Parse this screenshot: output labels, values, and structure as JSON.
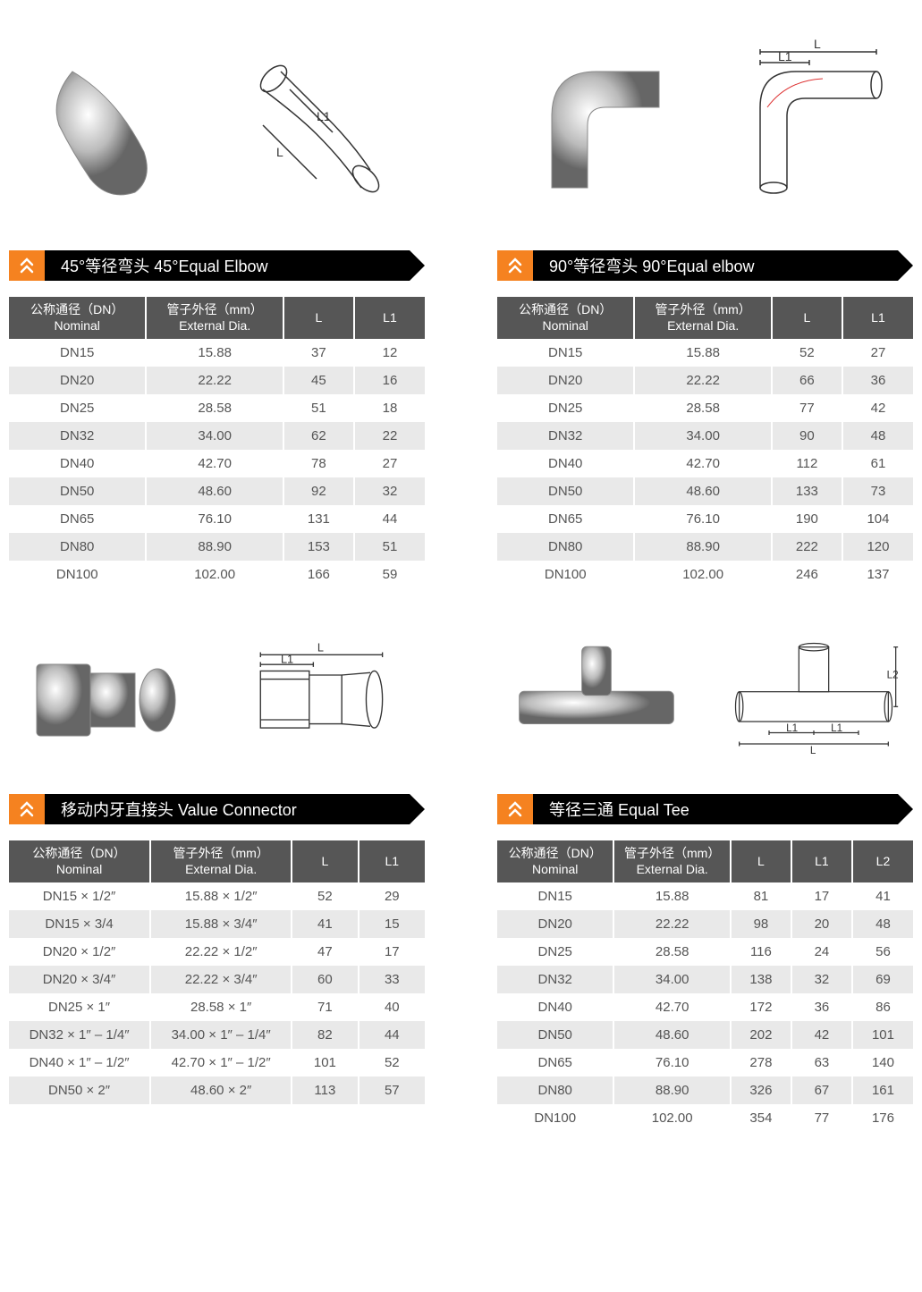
{
  "colors": {
    "chevron_bg": "#f58220",
    "title_bg": "#000000",
    "header_bg": "#565656",
    "row_even": "#ffffff",
    "row_odd": "#e9e9e9",
    "text": "#555555"
  },
  "sections": [
    {
      "id": "elbow45",
      "title": "45°等径弯头  45°Equal Elbow",
      "diagram_labels": [
        "L",
        "L1"
      ],
      "columns": [
        {
          "h1": "公称通径（DN）",
          "h2": "Nominal",
          "w": "33%"
        },
        {
          "h1": "管子外径（mm）",
          "h2": "External Dia.",
          "w": "33%"
        },
        {
          "h1": "L",
          "h2": "",
          "w": "17%"
        },
        {
          "h1": "L1",
          "h2": "",
          "w": "17%"
        }
      ],
      "rows": [
        [
          "DN15",
          "15.88",
          "37",
          "12"
        ],
        [
          "DN20",
          "22.22",
          "45",
          "16"
        ],
        [
          "DN25",
          "28.58",
          "51",
          "18"
        ],
        [
          "DN32",
          "34.00",
          "62",
          "22"
        ],
        [
          "DN40",
          "42.70",
          "78",
          "27"
        ],
        [
          "DN50",
          "48.60",
          "92",
          "32"
        ],
        [
          "DN65",
          "76.10",
          "131",
          "44"
        ],
        [
          "DN80",
          "88.90",
          "153",
          "51"
        ],
        [
          "DN100",
          "102.00",
          "166",
          "59"
        ]
      ]
    },
    {
      "id": "elbow90",
      "title": "90°等径弯头  90°Equal elbow",
      "diagram_labels": [
        "L",
        "L1"
      ],
      "columns": [
        {
          "h1": "公称通径（DN）",
          "h2": "Nominal",
          "w": "33%"
        },
        {
          "h1": "管子外径（mm）",
          "h2": "External Dia.",
          "w": "33%"
        },
        {
          "h1": "L",
          "h2": "",
          "w": "17%"
        },
        {
          "h1": "L1",
          "h2": "",
          "w": "17%"
        }
      ],
      "rows": [
        [
          "DN15",
          "15.88",
          "52",
          "27"
        ],
        [
          "DN20",
          "22.22",
          "66",
          "36"
        ],
        [
          "DN25",
          "28.58",
          "77",
          "42"
        ],
        [
          "DN32",
          "34.00",
          "90",
          "48"
        ],
        [
          "DN40",
          "42.70",
          "112",
          "61"
        ],
        [
          "DN50",
          "48.60",
          "133",
          "73"
        ],
        [
          "DN65",
          "76.10",
          "190",
          "104"
        ],
        [
          "DN80",
          "88.90",
          "222",
          "120"
        ],
        [
          "DN100",
          "102.00",
          "246",
          "137"
        ]
      ]
    },
    {
      "id": "valueconn",
      "title": "移动内牙直接头  Value Connector",
      "diagram_labels": [
        "L",
        "L1"
      ],
      "columns": [
        {
          "h1": "公称通径（DN）",
          "h2": "Nominal",
          "w": "34%"
        },
        {
          "h1": "管子外径（mm）",
          "h2": "External Dia.",
          "w": "34%"
        },
        {
          "h1": "L",
          "h2": "",
          "w": "16%"
        },
        {
          "h1": "L1",
          "h2": "",
          "w": "16%"
        }
      ],
      "rows": [
        [
          "DN15 × 1/2″",
          "15.88 × 1/2″",
          "52",
          "29"
        ],
        [
          "DN15 × 3/4",
          "15.88 × 3/4″",
          "41",
          "15"
        ],
        [
          "DN20 × 1/2″",
          "22.22 × 1/2″",
          "47",
          "17"
        ],
        [
          "DN20 × 3/4″",
          "22.22 × 3/4″",
          "60",
          "33"
        ],
        [
          "DN25 × 1″",
          "28.58 × 1″",
          "71",
          "40"
        ],
        [
          "DN32 × 1″ – 1/4″",
          "34.00 × 1″ – 1/4″",
          "82",
          "44"
        ],
        [
          "DN40 × 1″ – 1/2″",
          "42.70 × 1″ – 1/2″",
          "101",
          "52"
        ],
        [
          "DN50 × 2″",
          "48.60 × 2″",
          "113",
          "57"
        ]
      ]
    },
    {
      "id": "equaltee",
      "title": "等径三通  Equal Tee",
      "diagram_labels": [
        "L",
        "L1",
        "L1",
        "L2"
      ],
      "columns": [
        {
          "h1": "公称通径（DN）",
          "h2": "Nominal",
          "w": "28%"
        },
        {
          "h1": "管子外径（mm）",
          "h2": "External Dia.",
          "w": "28%"
        },
        {
          "h1": "L",
          "h2": "",
          "w": "14.6%"
        },
        {
          "h1": "L1",
          "h2": "",
          "w": "14.6%"
        },
        {
          "h1": "L2",
          "h2": "",
          "w": "14.6%"
        }
      ],
      "rows": [
        [
          "DN15",
          "15.88",
          "81",
          "17",
          "41"
        ],
        [
          "DN20",
          "22.22",
          "98",
          "20",
          "48"
        ],
        [
          "DN25",
          "28.58",
          "116",
          "24",
          "56"
        ],
        [
          "DN32",
          "34.00",
          "138",
          "32",
          "69"
        ],
        [
          "DN40",
          "42.70",
          "172",
          "36",
          "86"
        ],
        [
          "DN50",
          "48.60",
          "202",
          "42",
          "101"
        ],
        [
          "DN65",
          "76.10",
          "278",
          "63",
          "140"
        ],
        [
          "DN80",
          "88.90",
          "326",
          "67",
          "161"
        ],
        [
          "DN100",
          "102.00",
          "354",
          "77",
          "176"
        ]
      ]
    }
  ]
}
